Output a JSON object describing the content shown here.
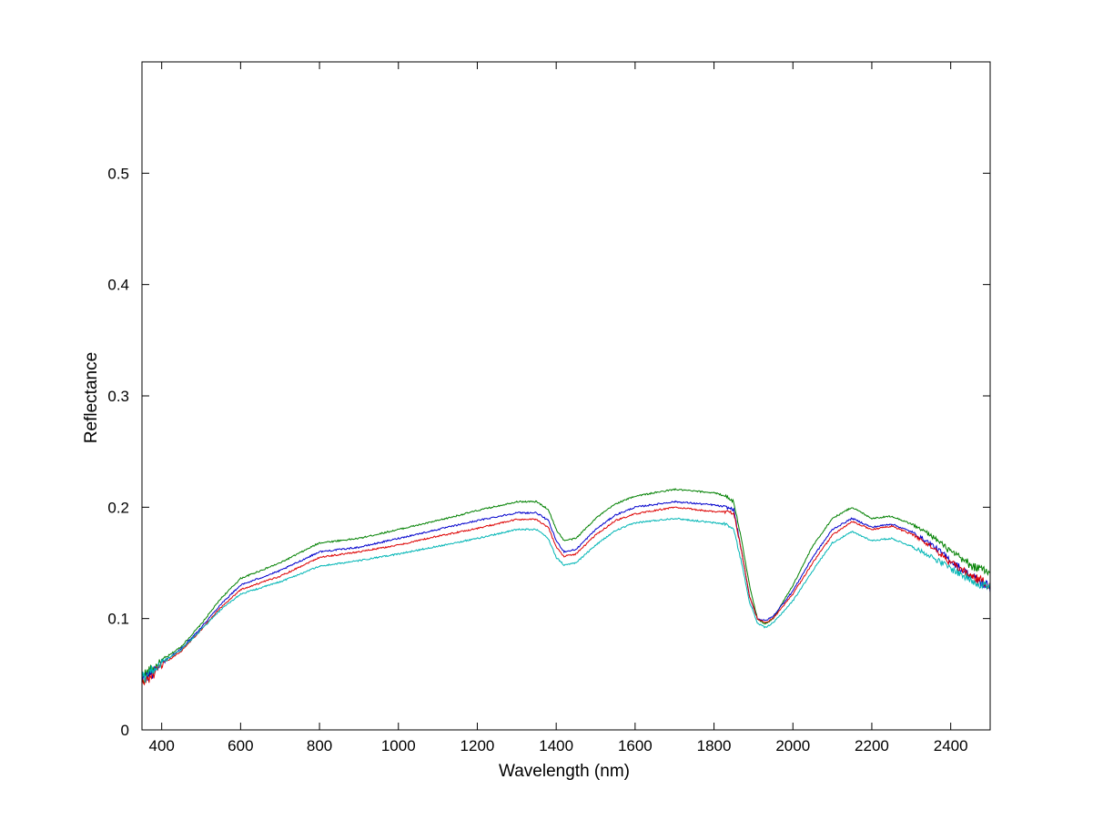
{
  "chart_data": {
    "type": "line",
    "title": "",
    "xlabel": "Wavelength (nm)",
    "ylabel": "Reflectance",
    "xlim": [
      350,
      2500
    ],
    "ylim": [
      0,
      0.6
    ],
    "xticks": [
      400,
      600,
      800,
      1000,
      1200,
      1400,
      1600,
      1800,
      2000,
      2200,
      2400
    ],
    "yticks": [
      0,
      0.1,
      0.2,
      0.3,
      0.4,
      0.5
    ],
    "ytick_labels": [
      "0",
      "0.1",
      "0.2",
      "0.3",
      "0.4",
      "0.5"
    ],
    "grid": false,
    "legend": "none",
    "series": [
      {
        "color": "#008000",
        "x": [
          350,
          360,
          380,
          400,
          450,
          500,
          550,
          600,
          700,
          800,
          900,
          1000,
          1100,
          1200,
          1300,
          1350,
          1380,
          1400,
          1420,
          1450,
          1500,
          1550,
          1600,
          1700,
          1800,
          1830,
          1850,
          1870,
          1890,
          1910,
          1930,
          1950,
          2000,
          2050,
          2100,
          2150,
          2200,
          2250,
          2300,
          2350,
          2400,
          2450,
          2500
        ],
        "y": [
          0.045,
          0.05,
          0.055,
          0.062,
          0.075,
          0.095,
          0.118,
          0.136,
          0.15,
          0.168,
          0.172,
          0.18,
          0.188,
          0.197,
          0.205,
          0.205,
          0.198,
          0.18,
          0.17,
          0.172,
          0.19,
          0.203,
          0.21,
          0.216,
          0.213,
          0.21,
          0.205,
          0.17,
          0.13,
          0.1,
          0.095,
          0.1,
          0.13,
          0.165,
          0.19,
          0.2,
          0.19,
          0.192,
          0.185,
          0.175,
          0.16,
          0.148,
          0.14
        ],
        "noise": 0.004
      },
      {
        "color": "#0000cc",
        "x": [
          350,
          360,
          380,
          400,
          450,
          500,
          550,
          600,
          700,
          800,
          900,
          1000,
          1100,
          1200,
          1300,
          1350,
          1380,
          1400,
          1420,
          1450,
          1500,
          1550,
          1600,
          1700,
          1800,
          1830,
          1850,
          1870,
          1890,
          1910,
          1930,
          1950,
          2000,
          2050,
          2100,
          2150,
          2200,
          2250,
          2300,
          2350,
          2400,
          2450,
          2500
        ],
        "y": [
          0.042,
          0.047,
          0.052,
          0.06,
          0.073,
          0.092,
          0.113,
          0.13,
          0.143,
          0.16,
          0.164,
          0.172,
          0.18,
          0.188,
          0.195,
          0.195,
          0.188,
          0.17,
          0.16,
          0.162,
          0.18,
          0.193,
          0.2,
          0.205,
          0.202,
          0.2,
          0.198,
          0.16,
          0.12,
          0.1,
          0.098,
          0.102,
          0.125,
          0.155,
          0.18,
          0.19,
          0.182,
          0.185,
          0.178,
          0.167,
          0.152,
          0.138,
          0.128
        ],
        "noise": 0.004
      },
      {
        "color": "#dd0000",
        "x": [
          350,
          360,
          380,
          400,
          450,
          500,
          550,
          600,
          700,
          800,
          900,
          1000,
          1100,
          1200,
          1300,
          1350,
          1380,
          1400,
          1420,
          1450,
          1500,
          1550,
          1600,
          1700,
          1800,
          1830,
          1850,
          1870,
          1890,
          1910,
          1930,
          1950,
          2000,
          2050,
          2100,
          2150,
          2200,
          2250,
          2300,
          2350,
          2400,
          2450,
          2500
        ],
        "y": [
          0.04,
          0.045,
          0.05,
          0.058,
          0.071,
          0.09,
          0.11,
          0.126,
          0.138,
          0.155,
          0.16,
          0.166,
          0.174,
          0.181,
          0.189,
          0.189,
          0.182,
          0.164,
          0.156,
          0.158,
          0.175,
          0.188,
          0.194,
          0.2,
          0.196,
          0.196,
          0.195,
          0.16,
          0.12,
          0.1,
          0.096,
          0.1,
          0.122,
          0.15,
          0.175,
          0.187,
          0.18,
          0.183,
          0.176,
          0.165,
          0.15,
          0.138,
          0.13
        ],
        "noise": 0.004
      },
      {
        "color": "#00b5b5",
        "x": [
          350,
          360,
          380,
          400,
          450,
          500,
          550,
          600,
          700,
          800,
          900,
          1000,
          1100,
          1200,
          1300,
          1350,
          1380,
          1400,
          1420,
          1450,
          1500,
          1550,
          1600,
          1700,
          1800,
          1830,
          1850,
          1870,
          1890,
          1910,
          1930,
          1950,
          2000,
          2050,
          2100,
          2150,
          2200,
          2250,
          2300,
          2350,
          2400,
          2450,
          2500
        ],
        "y": [
          0.045,
          0.05,
          0.055,
          0.06,
          0.072,
          0.09,
          0.108,
          0.122,
          0.133,
          0.147,
          0.152,
          0.158,
          0.165,
          0.172,
          0.18,
          0.18,
          0.172,
          0.155,
          0.148,
          0.15,
          0.166,
          0.179,
          0.186,
          0.19,
          0.186,
          0.185,
          0.18,
          0.15,
          0.115,
          0.096,
          0.092,
          0.096,
          0.116,
          0.143,
          0.168,
          0.178,
          0.17,
          0.172,
          0.165,
          0.156,
          0.145,
          0.135,
          0.128
        ],
        "noise": 0.004
      }
    ]
  }
}
